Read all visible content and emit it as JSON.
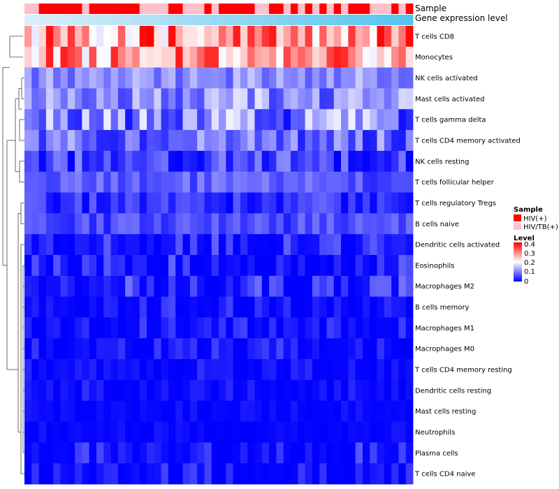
{
  "chart_data": {
    "type": "heatmap",
    "title": "",
    "value_legend": {
      "title": "Level",
      "ticks": [
        "0.4",
        "0.3",
        "0.2",
        "0.1",
        "0"
      ],
      "range": [
        0,
        0.4
      ],
      "colors": {
        "low": "#0000ff",
        "mid": "#ffffff",
        "high": "#ff0000"
      }
    },
    "annotations": [
      {
        "name": "Sample",
        "label": "Sample"
      },
      {
        "name": "Gene expression level",
        "label": "Gene expression level",
        "gradient": {
          "from": "#ddeef8",
          "to": "#55c4ef"
        }
      }
    ],
    "sample_legend": {
      "title": "Sample",
      "entries": [
        {
          "label": "HIV(+)",
          "color": "#ff0000"
        },
        {
          "label": "HIV/TB(+)",
          "color": "#ffc0cb"
        }
      ]
    },
    "sample_groups": [
      "P",
      "P",
      "H",
      "H",
      "H",
      "H",
      "H",
      "H",
      "P",
      "H",
      "H",
      "H",
      "H",
      "H",
      "H",
      "H",
      "P",
      "P",
      "P",
      "P",
      "H",
      "H",
      "P",
      "P",
      "P",
      "H",
      "P",
      "H",
      "H",
      "H",
      "H",
      "H",
      "P",
      "P",
      "H",
      "H",
      "P",
      "H",
      "P",
      "H",
      "P",
      "H",
      "P",
      "H",
      "P",
      "H",
      "H",
      "H",
      "P",
      "P",
      "P",
      "H",
      "P",
      "H"
    ],
    "rows": [
      "T cells CD8",
      "Monocytes",
      "NK cells activated",
      "Mast cells activated",
      "T cells gamma delta",
      "T cells CD4 memory activated",
      "NK cells resting",
      "T cells follicular helper",
      "T cells regulatory  Tregs",
      "B cells naive",
      "Dendritic cells activated",
      "Eosinophils",
      "Macrophages M2",
      "B cells memory",
      "Macrophages M1",
      "Macrophages M0",
      "T cells CD4 memory resting",
      "Dendritic cells resting",
      "Mast cells resting",
      "Neutrophils",
      "Plasma cells",
      "T cells CD4 naive"
    ],
    "row_level_ranges": [
      [
        0.18,
        0.4
      ],
      [
        0.18,
        0.38
      ],
      [
        0.06,
        0.16
      ],
      [
        0.04,
        0.18
      ],
      [
        0.01,
        0.19
      ],
      [
        0.02,
        0.15
      ],
      [
        0.0,
        0.12
      ],
      [
        0.03,
        0.11
      ],
      [
        0.0,
        0.08
      ],
      [
        0.02,
        0.09
      ],
      [
        0.0,
        0.08
      ],
      [
        0.0,
        0.08
      ],
      [
        0.0,
        0.09
      ],
      [
        0.0,
        0.06
      ],
      [
        0.0,
        0.06
      ],
      [
        0.0,
        0.06
      ],
      [
        0.0,
        0.04
      ],
      [
        0.0,
        0.04
      ],
      [
        0.0,
        0.02
      ],
      [
        0.0,
        0.02
      ],
      [
        0.0,
        0.07
      ],
      [
        0.0,
        0.06
      ]
    ]
  }
}
